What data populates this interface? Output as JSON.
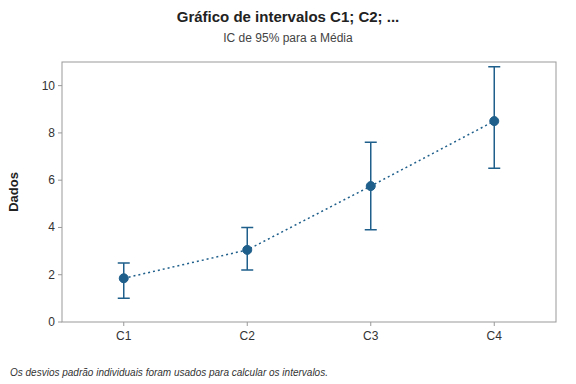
{
  "chart_data": {
    "type": "errorbar",
    "title": "Gráfico de intervalos C1; C2; ...",
    "subtitle": "IC de 95% para a Média",
    "ylabel": "Dados",
    "footer": "Os desvios padrão individuais foram usados para calcular os intervalos.",
    "categories": [
      "C1",
      "C2",
      "C3",
      "C4"
    ],
    "values": [
      1.85,
      3.05,
      5.75,
      8.5
    ],
    "lower": [
      1.0,
      2.2,
      3.9,
      6.5
    ],
    "upper": [
      2.5,
      4.0,
      7.6,
      10.8
    ],
    "ylim": [
      0,
      11
    ],
    "yticks": [
      0,
      2,
      4,
      6,
      8,
      10
    ],
    "color": "#1f5f8b",
    "marker": "circle",
    "line_style": "dotted",
    "grid": false
  }
}
